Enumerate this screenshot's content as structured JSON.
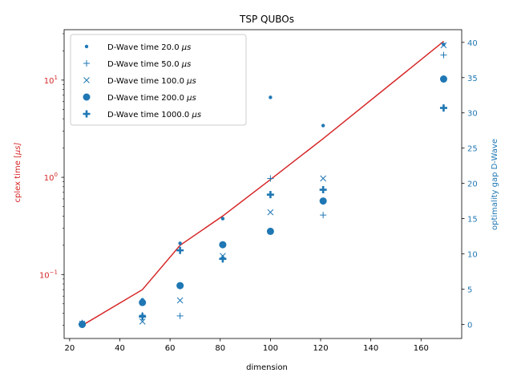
{
  "chart_data": {
    "type": "scatter",
    "title": "TSP QUBOs",
    "xlabel": "dimension",
    "ylabel_left": "cplex time [μs]",
    "ylabel_right": "optimality gap D-Wave",
    "xlim": [
      17.8,
      176.2
    ],
    "xticks": [
      20,
      40,
      60,
      80,
      100,
      120,
      140,
      160
    ],
    "ylim_left": [
      0.022,
      33
    ],
    "yscale_left": "log",
    "yticks_left": [
      {
        "value": 0.1,
        "base": "10",
        "exp": "−1"
      },
      {
        "value": 1,
        "base": "10",
        "exp": "0"
      },
      {
        "value": 10,
        "base": "10",
        "exp": "1"
      }
    ],
    "ylim_right": [
      -2.0,
      41.8
    ],
    "yticks_right": [
      0,
      5,
      10,
      15,
      20,
      25,
      30,
      35,
      40
    ],
    "legend_position": "top-left",
    "colors": {
      "left_axis": "#d62728",
      "right_axis": "#1f77b4",
      "cplex_line": "#d62728",
      "markers": "#1f77b4"
    },
    "cplex_line": {
      "x": [
        25,
        49,
        64,
        81,
        100,
        121,
        169
      ],
      "y": [
        0.03,
        0.07,
        0.2,
        0.4,
        0.95,
        2.5,
        25
      ]
    },
    "series": [
      {
        "name": "D-Wave time 20.0",
        "unit": "μs",
        "marker": "point",
        "x": [
          25,
          49,
          64,
          81,
          100,
          121,
          169
        ],
        "y": [
          0.3,
          3.5,
          11.5,
          15.0,
          32.2,
          28.2,
          39.7
        ]
      },
      {
        "name": "D-Wave time 50.0",
        "unit": "μs",
        "marker": "plus",
        "x": [
          25,
          49,
          64,
          81,
          100,
          121,
          169
        ],
        "y": [
          0.2,
          1.3,
          1.2,
          9.2,
          20.7,
          15.5,
          38.2
        ]
      },
      {
        "name": "D-Wave time 100.0",
        "unit": "μs",
        "marker": "x",
        "x": [
          25,
          49,
          64,
          81,
          100,
          121,
          169
        ],
        "y": [
          0.1,
          0.4,
          3.4,
          9.7,
          15.9,
          20.7,
          39.6
        ]
      },
      {
        "name": "D-Wave time 200.0",
        "unit": "μs",
        "marker": "circle",
        "x": [
          25,
          49,
          64,
          81,
          100,
          121,
          169
        ],
        "y": [
          0.0,
          3.1,
          5.5,
          11.3,
          13.2,
          17.5,
          34.8
        ]
      },
      {
        "name": "D-Wave time 1000.0",
        "unit": "μs",
        "marker": "thick-plus",
        "x": [
          25,
          49,
          64,
          81,
          100,
          121,
          169
        ],
        "y": [
          0.0,
          1.1,
          10.5,
          9.3,
          18.4,
          19.1,
          30.7
        ]
      }
    ]
  }
}
